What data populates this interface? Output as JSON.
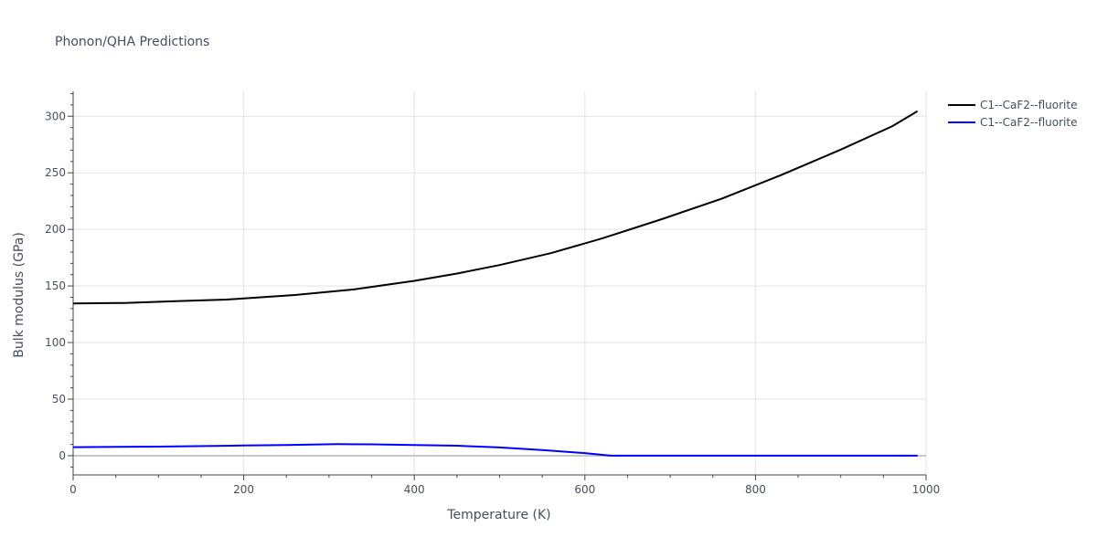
{
  "chart_data": {
    "type": "line",
    "title": "Phonon/QHA Predictions",
    "xlabel": "Temperature (K)",
    "ylabel": "Bulk modulus (GPa)",
    "xlim": [
      0,
      1000
    ],
    "ylim": [
      -17,
      322
    ],
    "x_ticks": [
      0,
      200,
      400,
      600,
      800,
      1000
    ],
    "y_ticks": [
      0,
      50,
      100,
      150,
      200,
      250,
      300
    ],
    "grid": true,
    "legend_position": "top-right",
    "series": [
      {
        "name": "C1--CaF2--fluorite",
        "color": "#000000",
        "x": [
          0,
          60,
          120,
          180,
          200,
          260,
          330,
          400,
          450,
          500,
          560,
          620,
          690,
          760,
          830,
          900,
          960,
          990
        ],
        "y": [
          134.5,
          135,
          136.5,
          138,
          139,
          142,
          147,
          154.5,
          161,
          168.5,
          179,
          192,
          209,
          227,
          248,
          270.5,
          291,
          304.5
        ]
      },
      {
        "name": "C1--CaF2--fluorite",
        "color": "#0000ff",
        "x": [
          0,
          100,
          200,
          250,
          310,
          350,
          400,
          450,
          500,
          550,
          600,
          630,
          700,
          800,
          900,
          990
        ],
        "y": [
          7.5,
          8,
          9,
          9.5,
          10.2,
          10,
          9.5,
          8.8,
          7.3,
          5,
          2.3,
          0,
          0,
          0,
          0,
          0
        ]
      }
    ]
  }
}
